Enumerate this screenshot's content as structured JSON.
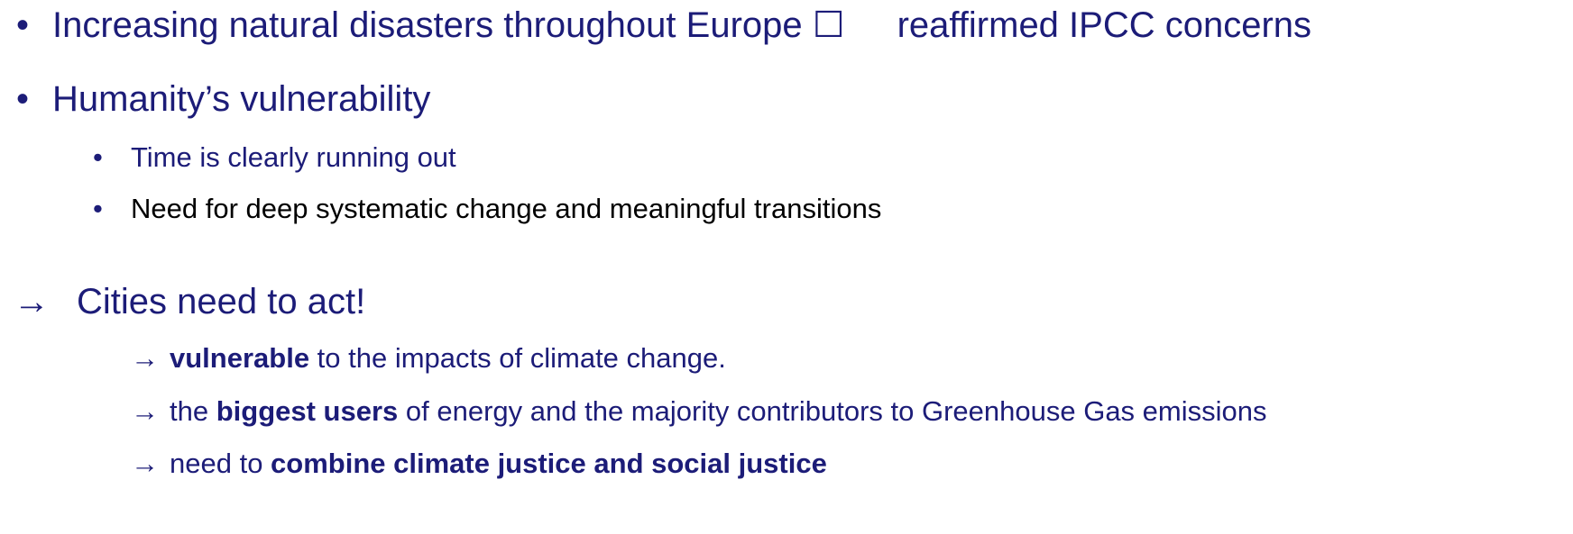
{
  "items": [
    {
      "bullet": "•",
      "segments": [
        {
          "text": "Increasing natural disasters throughout Europe ☐",
          "bold": false
        },
        {
          "text": "reaffirmed IPCC concerns",
          "bold": false
        }
      ]
    },
    {
      "bullet": "•",
      "segments": [
        {
          "text": "Humanity’s vulnerability",
          "bold": false
        }
      ]
    },
    {
      "bullet": "•",
      "segments": [
        {
          "text": "Time is clearly running out",
          "bold": false
        }
      ]
    },
    {
      "bullet": "•",
      "segments": [
        {
          "text": "Need for deep systematic change and meaningful transitions",
          "bold": false
        }
      ]
    },
    {
      "bullet": "→",
      "segments": [
        {
          "text": "Cities need to act!",
          "bold": false
        }
      ]
    },
    {
      "bullet": "→",
      "segments": [
        {
          "text": "vulnerable",
          "bold": true
        },
        {
          "text": " to the impacts of climate change.",
          "bold": false
        }
      ]
    },
    {
      "bullet": "→",
      "segments": [
        {
          "text": "the ",
          "bold": false
        },
        {
          "text": "biggest users",
          "bold": true
        },
        {
          "text": " of energy and the majority contributors to Greenhouse Gas emissions",
          "bold": false
        }
      ]
    },
    {
      "bullet": "→",
      "segments": [
        {
          "text": "need to ",
          "bold": false
        },
        {
          "text": "combine climate justice and social justice",
          "bold": true
        }
      ]
    }
  ]
}
